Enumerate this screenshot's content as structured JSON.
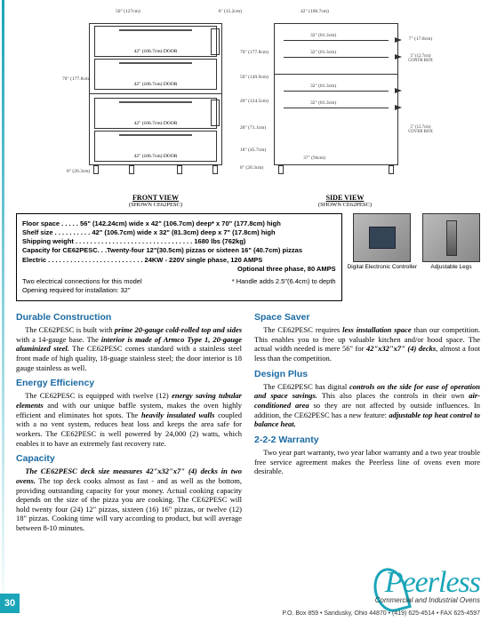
{
  "diagrams": {
    "front": {
      "label": "FRONT VIEW",
      "sublabel": "(SHOWN CE62PESC)",
      "width_label": "50\" (127cm)",
      "depth_label": "6\" (15.2cm)",
      "height_label": "70\" (177.8cm)",
      "door_label": "42\" (106.7cm)\nDOOR",
      "base_height": "8\" (20.3cm)",
      "handle_note": "* Handle adds 2.5\"(6.4cm) to depth"
    },
    "side": {
      "label": "SIDE VIEW",
      "sublabel": "(SHOWN CE62PESC)",
      "top_width": "42\" (106.7cm)",
      "shelf_width": "32\" (81.3cm)",
      "interior_width": "37\" (94cm)",
      "height_70": "70\" (177.8cm)",
      "height_59": "59\" (149.9cm)",
      "height_49": "49\" (124.5cm)",
      "height_28": "28\" (71.1cm)",
      "height_18": "18\" (45.7cm)",
      "height_8": "8\" (20.3cm)",
      "shelf_height": "7\" (17.8cm)",
      "control_box": "5\" (12.7cm) CONTR BOX",
      "cover_box": "5\" (12.7cm) COVER BOX"
    }
  },
  "spec_box": {
    "floor_space": "Floor space . . . . .  56\" (142.24cm) wide x 42\" (106.7cm) deep* x 70\" (177.8cm) high",
    "shelf_size": "Shelf size . . . . . . . . . .  42\" (106.7cm) wide x 32\" (81.3cm) deep x 7\" (17.8cm) high",
    "shipping_weight": "Shipping weight  . . . . . . . . . . . . . . . . . . . . . . . . . . . . . . . .  1680 lbs (762kg)",
    "capacity": "Capacity for CE62PESC. . .Twenty-four 12\"(30.5cm) pizzas or sixteen 16\" (40.7cm) pizzas",
    "electric": "Electric . . . . . . . . . . . . . . . . . . . . . . . . . .  24KW - 220V single phase, 120 AMPS",
    "electric2": "Optional three phase, 80 AMPS",
    "connections": "Two electrical connections for this model",
    "opening": "Opening required for installation: 32\""
  },
  "photos": {
    "controller": "Digital Electronic Controller",
    "legs": "Adjustable Legs"
  },
  "sections": {
    "durable": {
      "title": "Durable Construction",
      "body": "The CE62PESC is built with <span class='bi'>prime 20-gauge cold-rolled top and sides</span> with a 14-gauge base. The <span class='bi'>interior is made of Armco Type 1, 20-gauge aluminized steel.</span> The CE62PESC comes standard with a stainless steel front made of high quality, 18-guage stainless steel; the door interior is 18 gauge stainless as well."
    },
    "energy": {
      "title": "Energy Efficiency",
      "body": "The CE62PESC is equipped with twelve (12) <span class='bi'>energy saving tubular elements</span> and with our unique baffle system, makes the oven highly efficient and eliminates hot spots. The <span class='bi'>heavily insulated walls</span> coupled with a no vent system, reduces heat loss and keeps the area safe for workers. The CE62PESC is well powered by 24,000 (2) watts, which enables it to have an extremely fast recovery rate."
    },
    "capacity": {
      "title": "Capacity",
      "body": "<span class='bi'>The CE62PESC deck size measures 42\"x32\"x7\" (4) decks in two ovens.</span>  The top deck cooks almost as fast - and as well as the bottom, providing outstanding capacity for your money. Actual cooking capacity depends on the size of the pizza you are cooking.  The CE62PESC will hold twenty four (24) 12\" pizzas, sixteen (16) 16\" pizzas, or twelve (12) 18\" pizzas. Cooking time will vary according to product, but will average between 8-10 minutes."
    },
    "space": {
      "title": "Space Saver",
      "body": "The CE62PESC requires <span class='bi'>less installation space</span> than our competition. This enables you to free up valuable kitchen and/or hood space. The actual width needed is mere 56\" for <span class='bi'>42\"x32\"x7\" (4) decks</span>, almost a foot less than the competition."
    },
    "design": {
      "title": "Design Plus",
      "body": "The CE62PESC has digital <span class='bi'>controls on the side for ease of operation and space savings.</span> This also places the controls in their own <span class='bi'>air-conditioned area</span> so they are not affected by outside influences. In addition, the CE62PESC has a new feature: <span class='bi'>adjustable top heat control to balance heat.</span>"
    },
    "warranty": {
      "title": "2-2-2 Warranty",
      "body": "Two year part warranty, two year labor warranty and a two year trouble free service agreement makes the Peerless line of ovens even more desirable."
    }
  },
  "logo": {
    "text": "eerless",
    "tagline": "Commercial and Industrial Ovens"
  },
  "footer": "P.O. Box 859 • Sandusky, Ohio 44870 • (419) 625-4514 • FAX 625-4597",
  "page_num": "30"
}
